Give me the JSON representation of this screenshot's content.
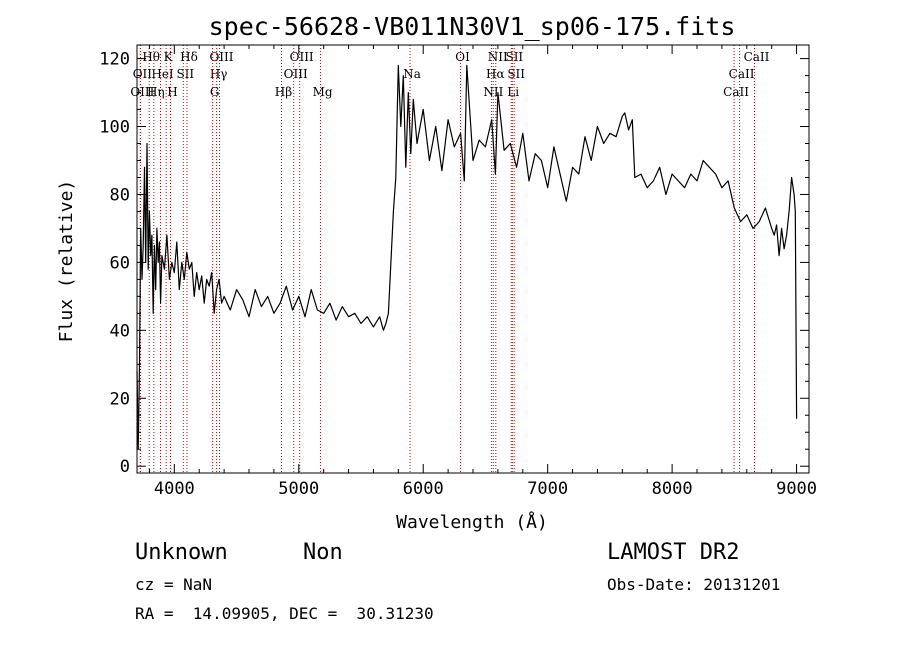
{
  "chart_data": {
    "type": "line",
    "title": "spec-56628-VB011N30V1_sp06-175.fits",
    "xlabel": "Wavelength (Å)",
    "ylabel": "Flux (relative)",
    "xlim": [
      3700,
      9100
    ],
    "ylim": [
      -2,
      124
    ],
    "x_ticks": [
      4000,
      5000,
      6000,
      7000,
      8000,
      9000
    ],
    "x_tick_labels": [
      "4000",
      "5000",
      "6000",
      "7000",
      "8000",
      "9000"
    ],
    "y_ticks": [
      0,
      20,
      40,
      60,
      80,
      100,
      120
    ],
    "y_tick_labels": [
      "0",
      "20",
      "40",
      "60",
      "80",
      "100",
      "120"
    ],
    "grid": false,
    "line_color": "#000000",
    "marker_color": "#cc0000",
    "spectrum": {
      "x": [
        3700,
        3710,
        3720,
        3730,
        3740,
        3750,
        3760,
        3770,
        3780,
        3790,
        3800,
        3810,
        3820,
        3830,
        3840,
        3850,
        3860,
        3870,
        3880,
        3890,
        3900,
        3920,
        3940,
        3960,
        3980,
        4000,
        4020,
        4040,
        4060,
        4080,
        4100,
        4120,
        4140,
        4160,
        4180,
        4200,
        4220,
        4240,
        4260,
        4280,
        4300,
        4320,
        4340,
        4360,
        4380,
        4400,
        4450,
        4500,
        4550,
        4600,
        4650,
        4700,
        4750,
        4800,
        4850,
        4900,
        4950,
        5000,
        5050,
        5100,
        5150,
        5200,
        5250,
        5300,
        5350,
        5400,
        5450,
        5500,
        5550,
        5600,
        5650,
        5680,
        5700,
        5720,
        5740,
        5760,
        5780,
        5800,
        5820,
        5840,
        5860,
        5880,
        5900,
        5920,
        5950,
        6000,
        6050,
        6100,
        6150,
        6200,
        6250,
        6300,
        6330,
        6350,
        6400,
        6450,
        6500,
        6550,
        6580,
        6600,
        6650,
        6700,
        6750,
        6800,
        6850,
        6900,
        6950,
        7000,
        7050,
        7100,
        7150,
        7200,
        7250,
        7300,
        7350,
        7400,
        7450,
        7500,
        7550,
        7600,
        7620,
        7650,
        7680,
        7700,
        7750,
        7800,
        7850,
        7900,
        7950,
        8000,
        8050,
        8100,
        8150,
        8200,
        8250,
        8300,
        8350,
        8400,
        8450,
        8500,
        8550,
        8600,
        8650,
        8700,
        8750,
        8800,
        8820,
        8840,
        8860,
        8880,
        8900,
        8920,
        8940,
        8960,
        8980,
        8990,
        9000
      ],
      "y": [
        28,
        5,
        30,
        70,
        55,
        65,
        88,
        60,
        95,
        58,
        75,
        62,
        68,
        45,
        65,
        52,
        70,
        60,
        66,
        48,
        62,
        58,
        68,
        55,
        60,
        57,
        66,
        52,
        60,
        55,
        63,
        58,
        60,
        50,
        57,
        52,
        56,
        48,
        55,
        53,
        57,
        45,
        52,
        55,
        48,
        50,
        46,
        52,
        49,
        44,
        52,
        47,
        50,
        45,
        48,
        53,
        46,
        50,
        44,
        52,
        46,
        45,
        48,
        43,
        47,
        44,
        45,
        42,
        44,
        41,
        44,
        40,
        42,
        45,
        60,
        75,
        85,
        118,
        100,
        115,
        88,
        110,
        92,
        108,
        95,
        105,
        90,
        100,
        87,
        102,
        94,
        98,
        84,
        118,
        90,
        96,
        94,
        102,
        86,
        110,
        93,
        95,
        88,
        98,
        84,
        92,
        90,
        82,
        94,
        86,
        78,
        88,
        86,
        97,
        90,
        100,
        95,
        98,
        97,
        103,
        104,
        99,
        102,
        85,
        86,
        82,
        84,
        88,
        80,
        86,
        84,
        82,
        86,
        84,
        90,
        88,
        86,
        82,
        84,
        76,
        72,
        74,
        70,
        72,
        76,
        70,
        68,
        71,
        62,
        70,
        64,
        68,
        75,
        85,
        80,
        75,
        14
      ]
    },
    "lines": [
      {
        "name": "Hθ",
        "wave": 3798,
        "row": 1
      },
      {
        "name": "OII",
        "wave": 3727,
        "row": 2
      },
      {
        "name": "OIII",
        "wave": 3727,
        "row": 3
      },
      {
        "name": "HeI",
        "wave": 3889,
        "row": 2
      },
      {
        "name": "Hη",
        "wave": 3835,
        "row": 3
      },
      {
        "name": "K",
        "wave": 3934,
        "row": 1
      },
      {
        "name": "SII",
        "wave": 4072,
        "row": 2
      },
      {
        "name": "H",
        "wave": 3969,
        "row": 3
      },
      {
        "name": "Hδ",
        "wave": 4102,
        "row": 1
      },
      {
        "name": "OIII",
        "wave": 4363,
        "row": 1
      },
      {
        "name": "Hγ",
        "wave": 4340,
        "row": 2
      },
      {
        "name": "G",
        "wave": 4308,
        "row": 3
      },
      {
        "name": "Hβ",
        "wave": 4861,
        "row": 3
      },
      {
        "name": "OIII",
        "wave": 5007,
        "row": 1
      },
      {
        "name": "OIII",
        "wave": 4959,
        "row": 2
      },
      {
        "name": "Mg",
        "wave": 5175,
        "row": 3
      },
      {
        "name": "Na",
        "wave": 5894,
        "row": 2
      },
      {
        "name": "OI",
        "wave": 6300,
        "row": 1
      },
      {
        "name": "NII",
        "wave": 6583,
        "row": 1
      },
      {
        "name": "Hα",
        "wave": 6563,
        "row": 2
      },
      {
        "name": "NII",
        "wave": 6548,
        "row": 3
      },
      {
        "name": "SII",
        "wave": 6716,
        "row": 1
      },
      {
        "name": "SII",
        "wave": 6731,
        "row": 2
      },
      {
        "name": "Li",
        "wave": 6707,
        "row": 3
      },
      {
        "name": "CaII",
        "wave": 8662,
        "row": 1
      },
      {
        "name": "CaII",
        "wave": 8542,
        "row": 2
      },
      {
        "name": "CaII",
        "wave": 8498,
        "row": 3
      }
    ]
  },
  "info": {
    "class_label": "Unknown",
    "subclass_label": "Non",
    "survey": "LAMOST DR2",
    "redshift": "cz = NaN",
    "obs_date": "Obs-Date: 20131201",
    "coords": "RA =  14.09905, DEC =  30.31230"
  }
}
